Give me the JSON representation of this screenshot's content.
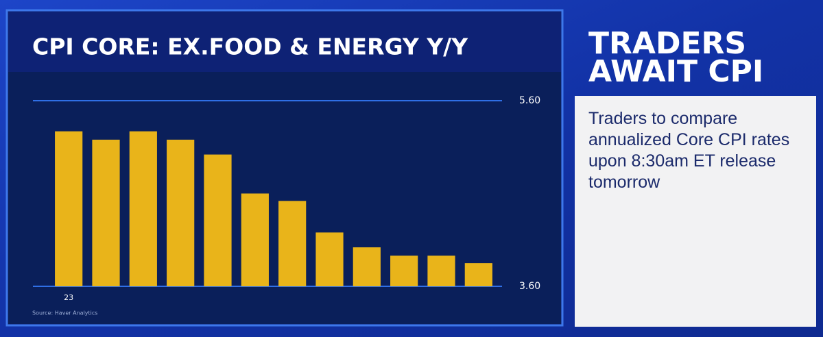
{
  "chart_data": {
    "type": "bar",
    "title": "CPI CORE: EX.FOOD & ENERGY Y/Y",
    "source": "Source: Haver Analytics",
    "categories": [
      "23",
      null,
      null,
      null,
      null,
      null,
      null,
      null,
      null,
      null,
      null,
      null
    ],
    "values": [
      5.27,
      5.18,
      5.27,
      5.18,
      5.02,
      4.6,
      4.52,
      4.18,
      4.02,
      3.93,
      3.93,
      3.85
    ],
    "color": "#e9b41a",
    "ylim": [
      3.6,
      5.6
    ],
    "yticks": [
      {
        "value": 3.6,
        "label": "3.60"
      },
      {
        "value": 5.6,
        "label": "5.60"
      }
    ],
    "grid": true
  },
  "sidebar": {
    "headline": [
      "TRADERS",
      "AWAIT CPI"
    ],
    "body": "Traders to compare annualized Core CPI rates upon 8:30am ET release tomorrow"
  }
}
